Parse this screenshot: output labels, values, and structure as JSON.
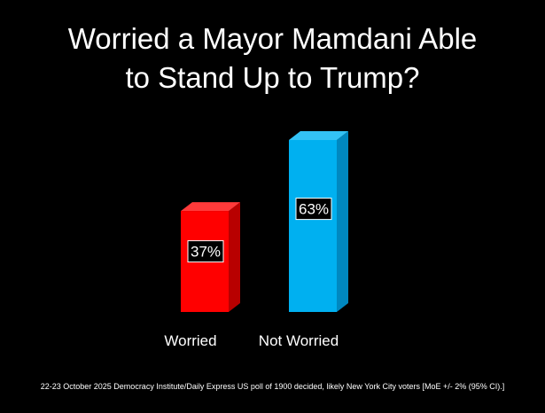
{
  "chart_data": {
    "type": "bar",
    "title_lines": [
      "Worried a Mayor Mamdani Able",
      "to Stand Up to Trump?"
    ],
    "categories": [
      "Worried",
      "Not Worried"
    ],
    "values": [
      37,
      63
    ],
    "value_labels": [
      "37%",
      "63%"
    ],
    "colors": [
      "#ff0000",
      "#00b0f0"
    ],
    "side_colors": [
      "#b80000",
      "#0088c0"
    ],
    "top_colors": [
      "#ff3a3a",
      "#33c2f5"
    ],
    "style": "3d-bar",
    "grid": false,
    "legend": "none",
    "ylim": [
      0,
      63
    ]
  },
  "footnote": "22-23 October 2025 Democracy Institute/Daily Express US poll of 1900 decided, likely New York City voters [MoE +/- 2% (95% CI).]"
}
